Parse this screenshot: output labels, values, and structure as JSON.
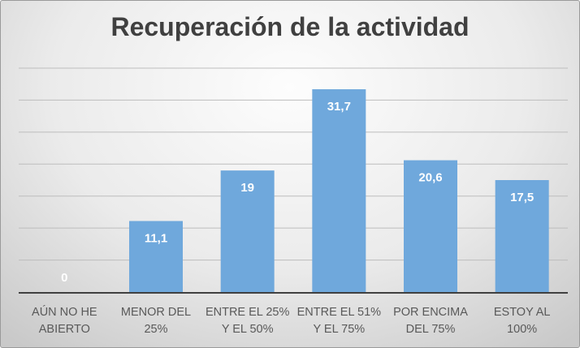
{
  "chart_data": {
    "type": "bar",
    "title": "Recuperación de la actividad",
    "categories": [
      [
        "AÚN NO HE",
        "ABIERTO"
      ],
      [
        "MENOR DEL",
        "25%"
      ],
      [
        "ENTRE EL 25%",
        "Y EL 50%"
      ],
      [
        "ENTRE EL 51%",
        "Y EL 75%"
      ],
      [
        "POR ENCIMA",
        "DEL 75%"
      ],
      [
        "ESTOY AL",
        "100%"
      ]
    ],
    "values": [
      0,
      11.1,
      19,
      31.7,
      20.6,
      17.5
    ],
    "data_labels": [
      "0",
      "11,1",
      "19",
      "31,7",
      "20,6",
      "17,5"
    ],
    "ylim": [
      0,
      35
    ],
    "ytick_step": 5,
    "grid": true,
    "y_axis_labels_shown": false,
    "bar_color": "#6fa8dc",
    "xlabel": "",
    "ylabel": ""
  }
}
